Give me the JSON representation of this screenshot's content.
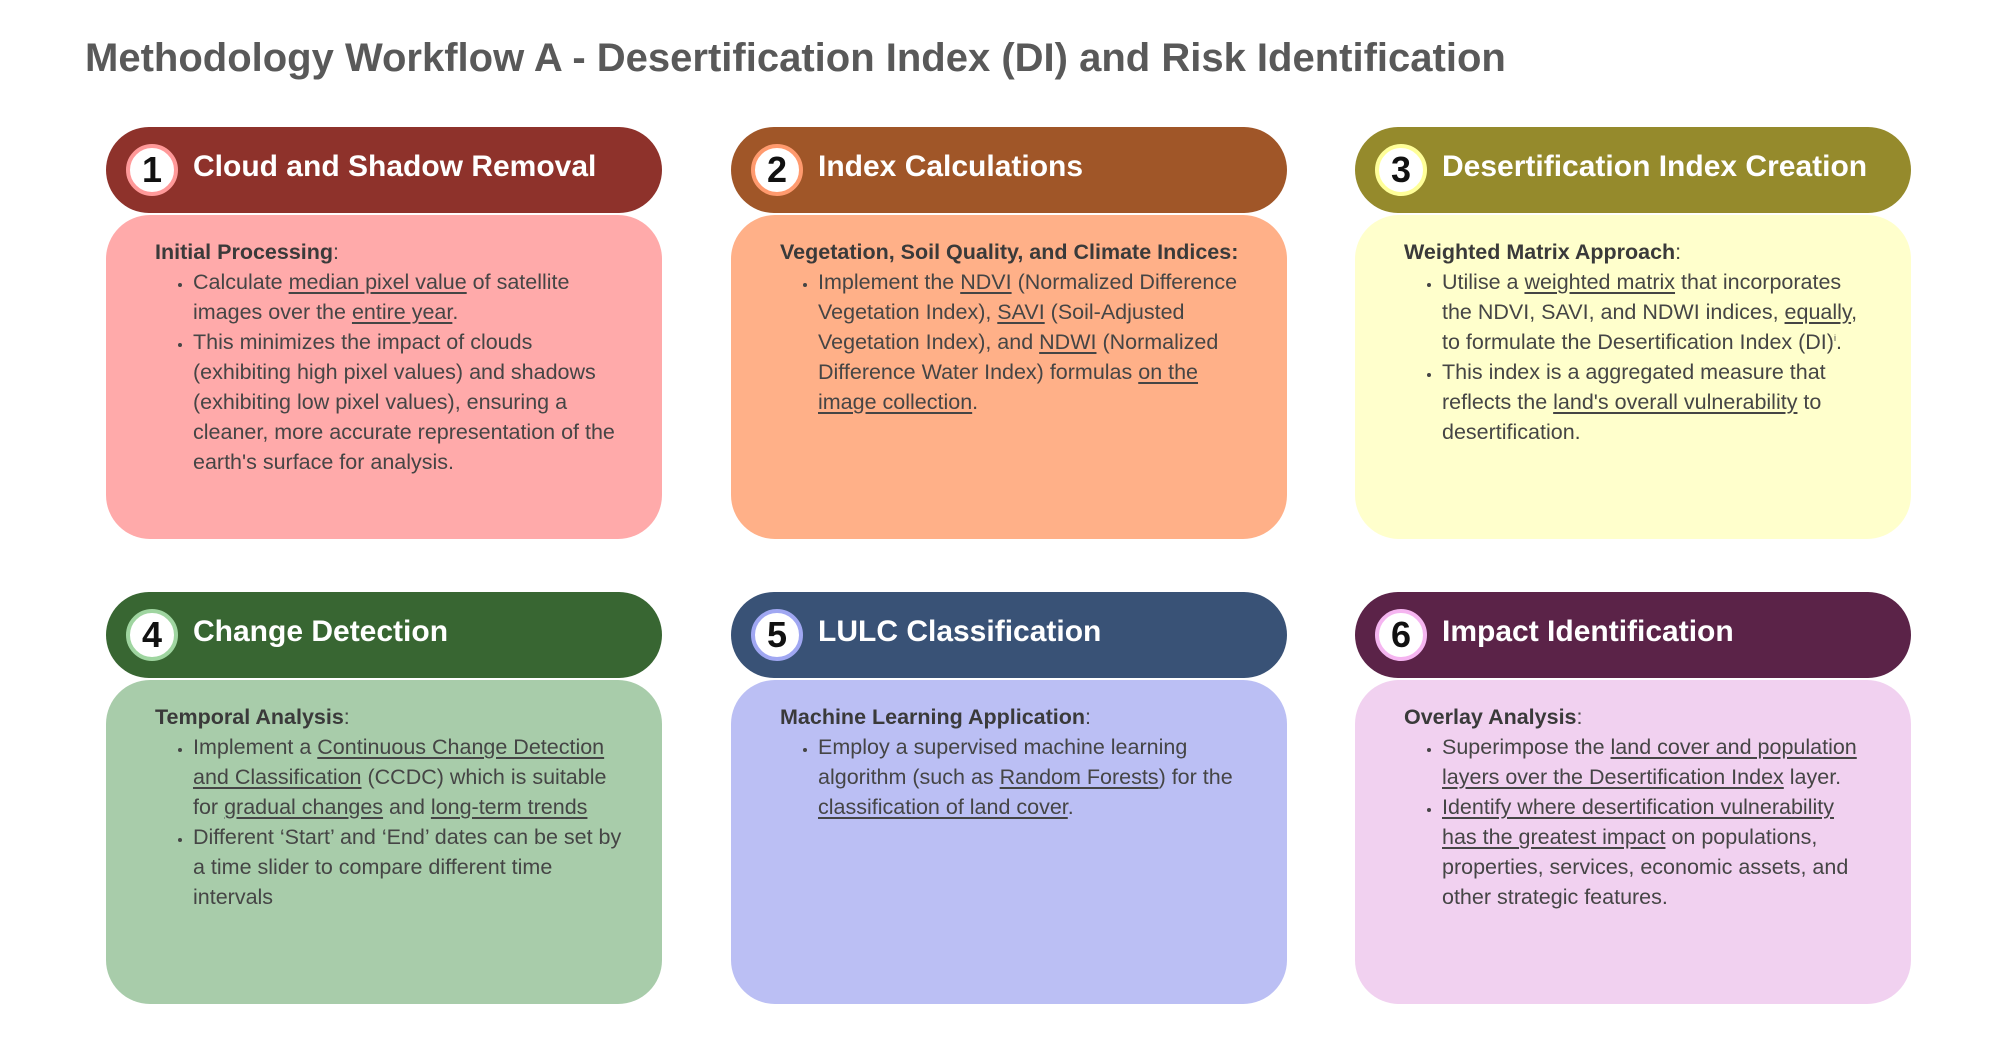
{
  "title": "Methodology Workflow A - Desertification Index (DI) and Risk Identification",
  "colors": {
    "title_text": "#595959",
    "step1": {
      "header": "#8e322b",
      "body": "#ffaaaa",
      "ring": "#ff9999"
    },
    "step2": {
      "header": "#a05628",
      "body": "#ffb088",
      "ring": "#ff9a6e"
    },
    "step3": {
      "header": "#958a2c",
      "body": "#ffffcc",
      "ring": "#ffff99"
    },
    "step4": {
      "header": "#386632",
      "body": "#a8ccaa",
      "ring": "#9fd5a0"
    },
    "step5": {
      "header": "#395276",
      "body": "#bbbff4",
      "ring": "#a0a7f2"
    },
    "step6": {
      "header": "#5b2348",
      "body": "#f1d1f0",
      "ring": "#f5b5f0"
    }
  },
  "steps": [
    {
      "number": "1",
      "title": "Cloud and Shadow Removal",
      "subheading": "Initial Processing",
      "colon": ":",
      "bullets": [
        [
          {
            "text": "Calculate "
          },
          {
            "text": "median pixel value",
            "u": true
          },
          {
            "text": " of satellite images over the "
          },
          {
            "text": "entire year",
            "u": true
          },
          {
            "text": "."
          }
        ],
        [
          {
            "text": "This minimizes the impact of clouds (exhibiting high pixel values) and shadows (exhibiting low pixel values), ensuring a cleaner, more accurate representation of the earth's surface for analysis."
          }
        ]
      ]
    },
    {
      "number": "2",
      "title": "Index Calculations",
      "subheading": "Vegetation, Soil Quality, and Climate Indices:",
      "colon": "",
      "bullets": [
        [
          {
            "text": "Implement the "
          },
          {
            "text": "NDVI",
            "u": true
          },
          {
            "text": " (Normalized Difference Vegetation Index), "
          },
          {
            "text": "SAVI",
            "u": true
          },
          {
            "text": " (Soil-Adjusted Vegetation Index), and "
          },
          {
            "text": "NDWI",
            "u": true
          },
          {
            "text": " (Normalized Difference Water Index) formulas "
          },
          {
            "text": "on the image collection",
            "u": true
          },
          {
            "text": "."
          }
        ]
      ]
    },
    {
      "number": "3",
      "title": "Desertification Index Creation",
      "subheading": "Weighted Matrix Approach",
      "colon": ":",
      "bullets": [
        [
          {
            "text": "Utilise a "
          },
          {
            "text": "weighted matrix",
            "u": true
          },
          {
            "text": " that incorporates the NDVI, SAVI, and NDWI indices, "
          },
          {
            "text": "equally",
            "u": true
          },
          {
            "text": ", to formulate the Desertification Index (DI)"
          },
          {
            "text": "i",
            "sup": true
          },
          {
            "text": "."
          }
        ],
        [
          {
            "text": "This index is a aggregated measure that reflects the "
          },
          {
            "text": "land's overall vulnerability",
            "u": true
          },
          {
            "text": " to desertification."
          }
        ]
      ]
    },
    {
      "number": "4",
      "title": "Change Detection",
      "subheading": "Temporal Analysis",
      "colon": ":",
      "bullets": [
        [
          {
            "text": "Implement a "
          },
          {
            "text": "Continuous Change Detection and Classification",
            "u": true
          },
          {
            "text": " (CCDC) which is suitable for "
          },
          {
            "text": "gradual changes",
            "u": true
          },
          {
            "text": " and "
          },
          {
            "text": "long-term trends",
            "u": true
          }
        ],
        [
          {
            "text": "Different ‘Start’ and ‘End’ dates can be set by a time slider to compare different time intervals"
          }
        ]
      ]
    },
    {
      "number": "5",
      "title": "LULC Classification",
      "subheading": "Machine Learning Application",
      "colon": ":",
      "bullets": [
        [
          {
            "text": "Employ a supervised machine learning algorithm (such as "
          },
          {
            "text": "Random Forests",
            "u": true
          },
          {
            "text": ") for the "
          },
          {
            "text": "classification of land cover",
            "u": true
          },
          {
            "text": "."
          }
        ]
      ]
    },
    {
      "number": "6",
      "title": "Impact Identification",
      "subheading": "Overlay Analysis",
      "colon": ":",
      "bullets": [
        [
          {
            "text": "Superimpose the "
          },
          {
            "text": "land cover and population layers over the Desertification Index",
            "u": true
          },
          {
            "text": " layer."
          }
        ],
        [
          {
            "text": "Identify where desertification vulnerability has the greatest impact",
            "u": true
          },
          {
            "text": " on populations, properties, services, economic assets, and other strategic features."
          }
        ]
      ]
    }
  ]
}
